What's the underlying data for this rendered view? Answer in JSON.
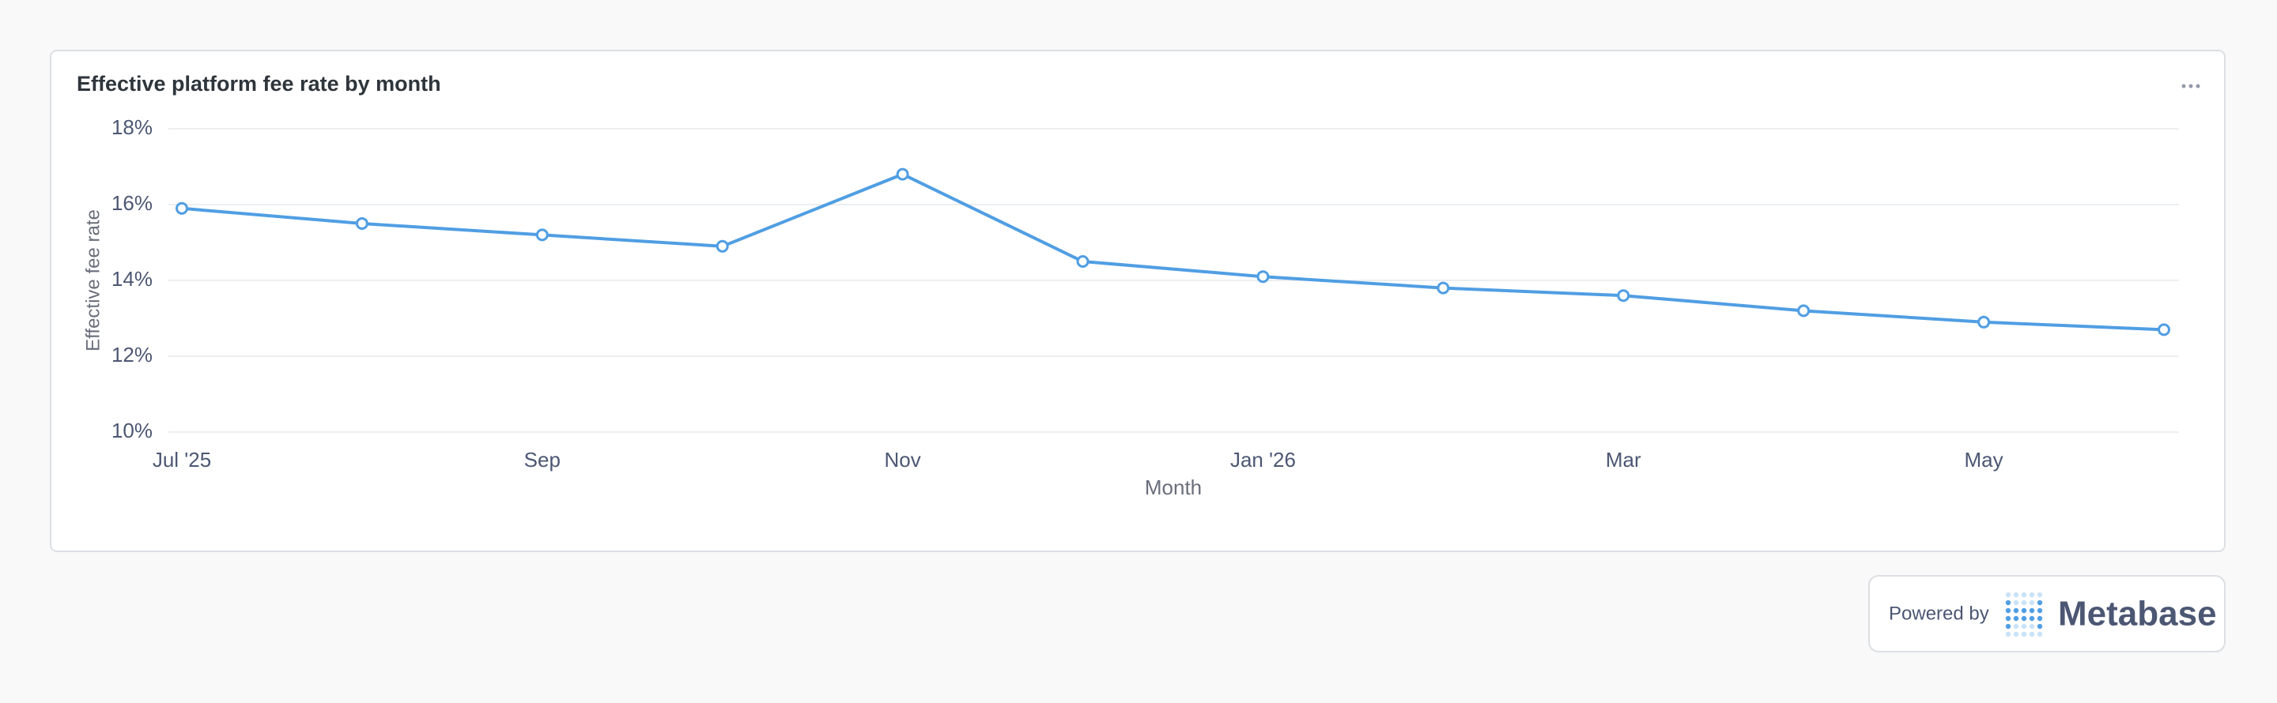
{
  "chart_data": {
    "type": "line",
    "title": "Effective platform fee rate by month",
    "x_label": "Month",
    "y_label": "Effective fee rate",
    "categories": [
      "Jul '25",
      null,
      "Sep",
      null,
      "Nov",
      null,
      "Jan '26",
      null,
      "Mar",
      null,
      "May",
      null
    ],
    "series": [
      {
        "name": "Effective fee rate",
        "color": "#509ee3",
        "values": [
          15.9,
          15.5,
          15.2,
          14.9,
          16.8,
          14.5,
          14.1,
          13.8,
          13.6,
          13.2,
          12.9,
          12.7
        ]
      }
    ],
    "ylim": [
      10,
      18
    ],
    "yticks": [
      {
        "value": 10,
        "label": "10%"
      },
      {
        "value": 12,
        "label": "12%"
      },
      {
        "value": 14,
        "label": "14%"
      },
      {
        "value": 16,
        "label": "16%"
      },
      {
        "value": 18,
        "label": "18%"
      }
    ],
    "grid": true
  },
  "footer": {
    "powered_by": "Powered by",
    "brand": "Metabase"
  }
}
